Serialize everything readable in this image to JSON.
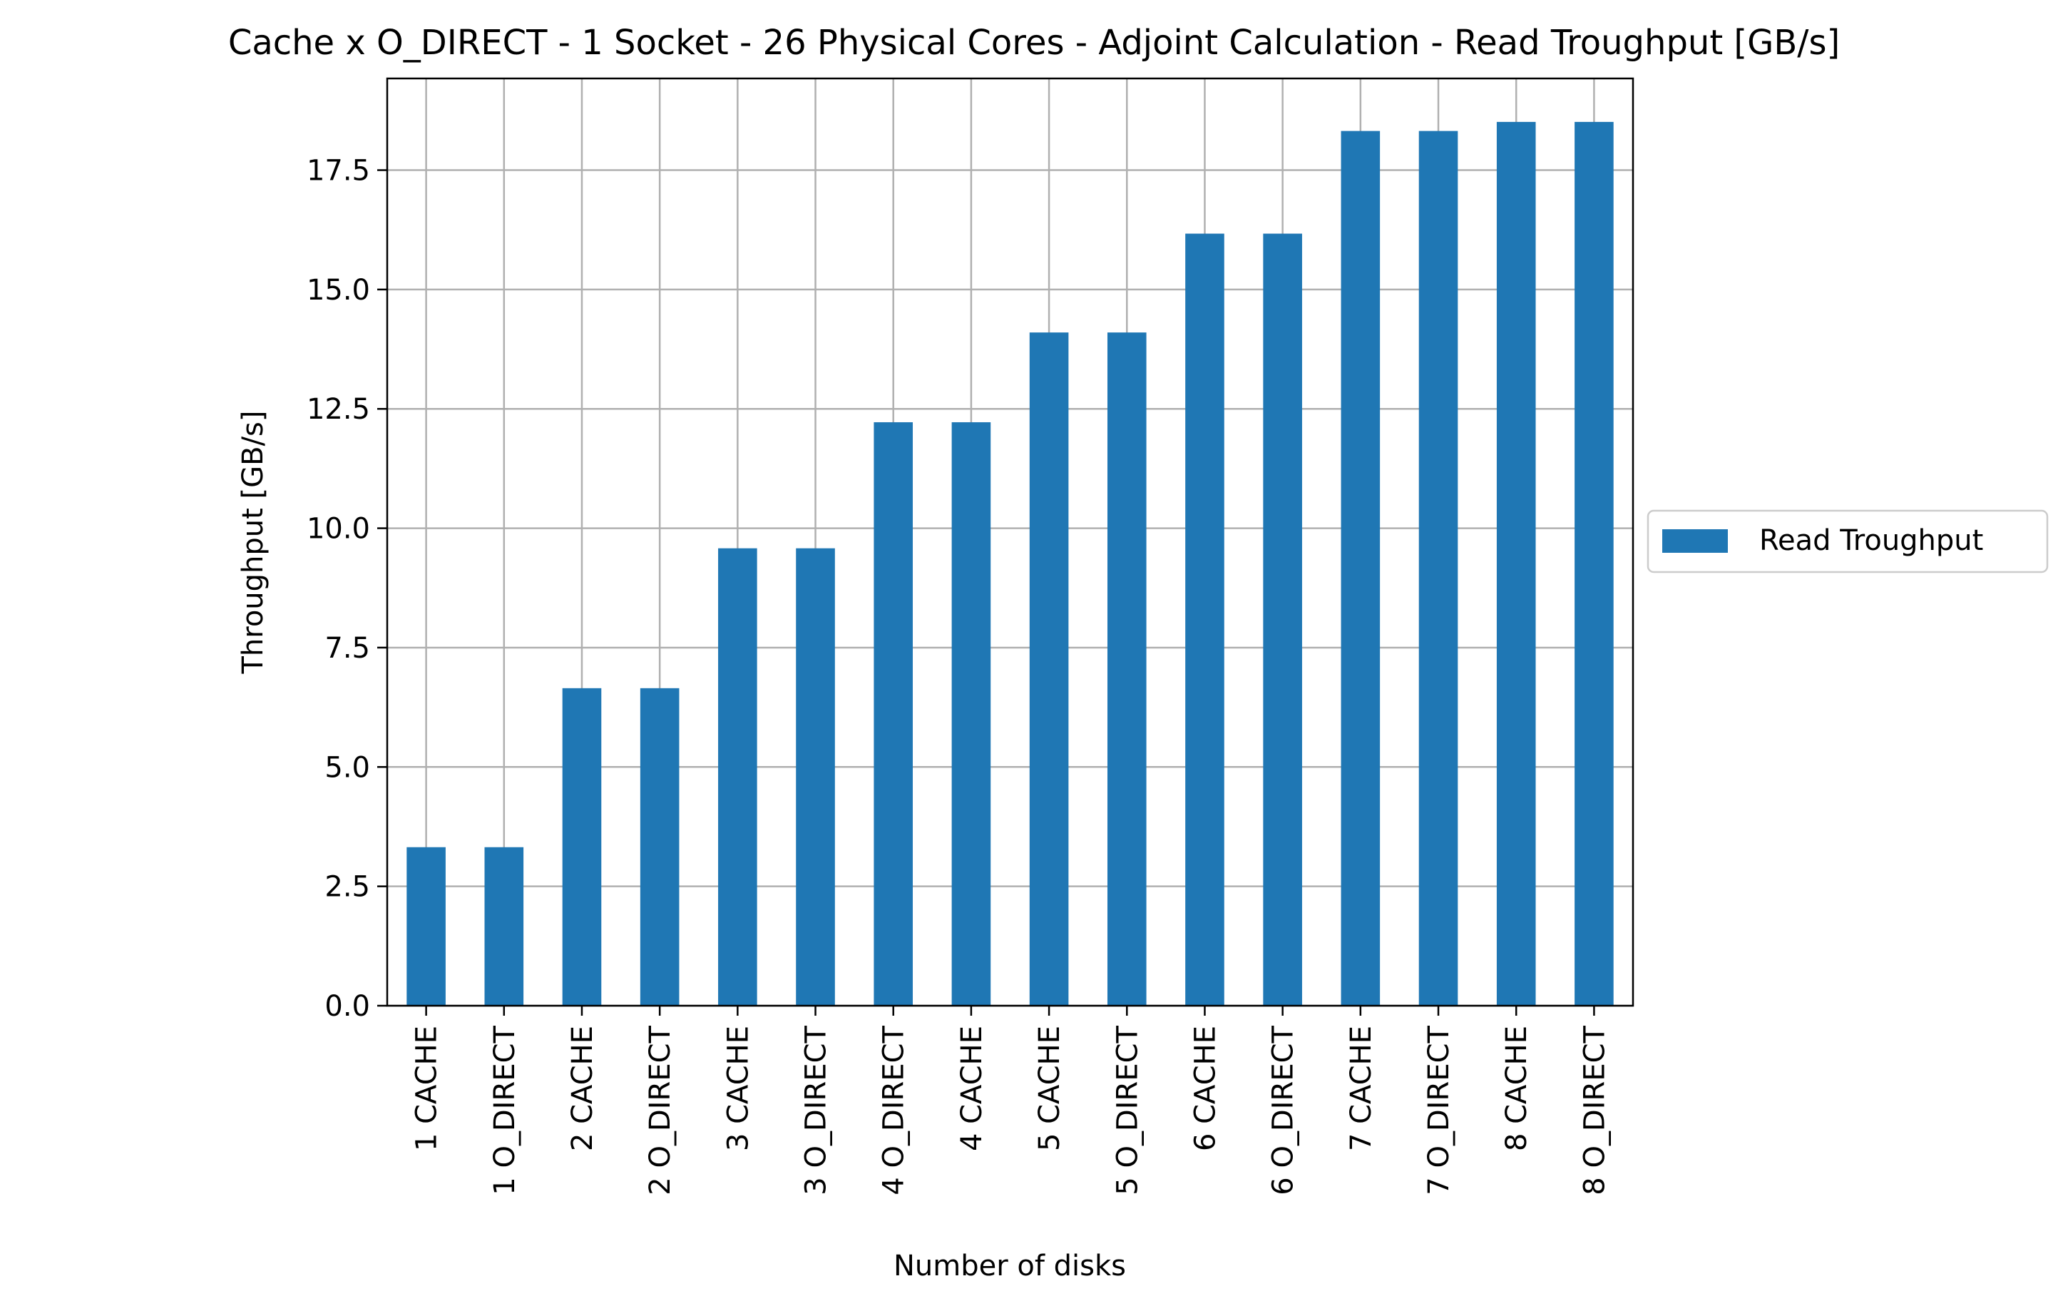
{
  "chart_data": {
    "type": "bar",
    "title": "Cache x O_DIRECT - 1 Socket - 26 Physical Cores - Adjoint Calculation - Read Troughput [GB/s]",
    "xlabel": "Number of disks",
    "ylabel": "Throughput [GB/s]",
    "categories": [
      "1 CACHE",
      "1 O_DIRECT",
      "2 CACHE",
      "2 O_DIRECT",
      "3 CACHE",
      "3 O_DIRECT",
      "4 O_DIRECT",
      "4 CACHE",
      "5 CACHE",
      "5 O_DIRECT",
      "6 CACHE",
      "6 O_DIRECT",
      "7 CACHE",
      "7 O_DIRECT",
      "8 CACHE",
      "8 O_DIRECT"
    ],
    "series": [
      {
        "name": "Read Troughput",
        "color": "#1f77b4",
        "values": [
          3.32,
          3.32,
          6.65,
          6.65,
          9.58,
          9.58,
          12.22,
          12.22,
          14.1,
          14.1,
          16.17,
          16.17,
          18.32,
          18.32,
          18.51,
          18.51
        ]
      }
    ],
    "ylim": [
      0,
      19.42
    ],
    "yticks": [
      0.0,
      2.5,
      5.0,
      7.5,
      10.0,
      12.5,
      15.0,
      17.5
    ],
    "ytick_labels": [
      "0.0",
      "2.5",
      "5.0",
      "7.5",
      "10.0",
      "12.5",
      "15.0",
      "17.5"
    ],
    "grid": true,
    "legend_position": "center-right-outside",
    "colors": {
      "bar": "#1f77b4",
      "grid": "#b0b0b0",
      "axis": "#000000"
    }
  }
}
